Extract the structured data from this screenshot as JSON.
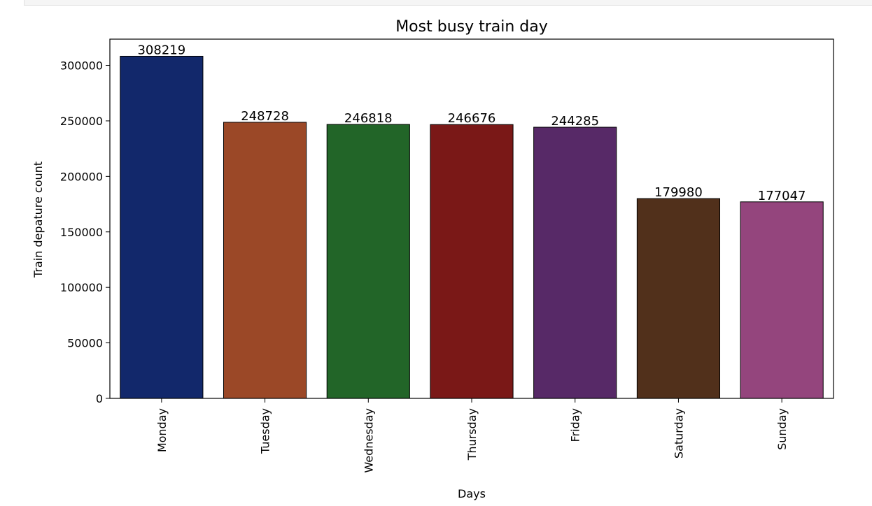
{
  "chart_data": {
    "type": "bar",
    "title": "Most busy train day",
    "xlabel": "Days",
    "ylabel": "Train depature count",
    "categories": [
      "Monday",
      "Tuesday",
      "Wednesday",
      "Thursday",
      "Friday",
      "Saturday",
      "Sunday"
    ],
    "values": [
      308219,
      248728,
      246818,
      246676,
      244285,
      179980,
      177047
    ],
    "value_labels": [
      "308219",
      "248728",
      "246818",
      "246676",
      "244285",
      "179980",
      "177047"
    ],
    "colors": [
      "#12286b",
      "#9b4827",
      "#226528",
      "#7a1817",
      "#572967",
      "#51301b",
      "#94457d"
    ],
    "yticks": [
      0,
      50000,
      100000,
      150000,
      200000,
      250000,
      300000
    ],
    "ytick_labels": [
      "0",
      "50000",
      "100000",
      "150000",
      "200000",
      "250000",
      "300000"
    ],
    "ylim": [
      0,
      323630
    ],
    "grid": false,
    "legend": "none"
  }
}
